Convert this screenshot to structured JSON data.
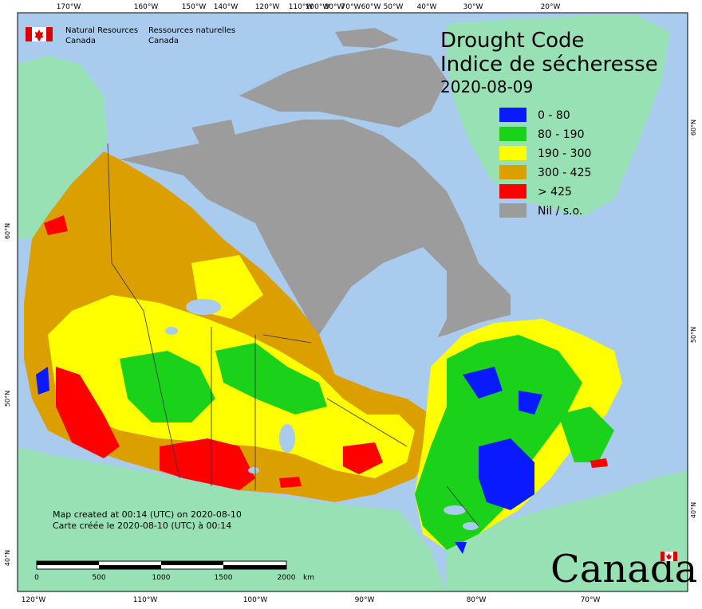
{
  "agency": {
    "name_en_line1": "Natural Resources",
    "name_en_line2": "Canada",
    "name_fr_line1": "Ressources naturelles",
    "name_fr_line2": "Canada"
  },
  "title": {
    "en": "Drought Code",
    "fr": "Indice de sécheresse",
    "date": "2020-08-09"
  },
  "legend": [
    {
      "label": "0 - 80",
      "color": "#0a1aff"
    },
    {
      "label": "80 - 190",
      "color": "#19d219"
    },
    {
      "label": "190 - 300",
      "color": "#ffff00"
    },
    {
      "label": "300 - 425",
      "color": "#dba000"
    },
    {
      "label": "> 425",
      "color": "#ff0000"
    },
    {
      "label": "Nil / s.o.",
      "color": "#9c9c9c"
    }
  ],
  "top_ticks": [
    "170°W",
    "160°W",
    "150°W",
    "140°W",
    "120°W",
    "110°W",
    "100°W",
    "80°W",
    "70°W",
    "60°W",
    "50°W",
    "40°W",
    "30°W",
    "20°W"
  ],
  "bottom_ticks": [
    "120°W",
    "110°W",
    "100°W",
    "90°W",
    "80°W",
    "70°W"
  ],
  "left_ticks": [
    "60°N",
    "50°N",
    "40°N"
  ],
  "right_ticks": [
    "60°N",
    "50°N",
    "40°N"
  ],
  "caption": {
    "line1": "Map created at 00:14 (UTC) on 2020-08-10",
    "line2": "Carte créée le 2020-08-10 (UTC) à 00:14"
  },
  "scale": {
    "labels": [
      "0",
      "500",
      "1000",
      "1500",
      "2000"
    ],
    "unit": "km"
  },
  "wordmark": "Canada",
  "colors": {
    "ocean": "#a9cbee",
    "foreign_land": "#98e1b5",
    "nil": "#9c9c9c"
  }
}
